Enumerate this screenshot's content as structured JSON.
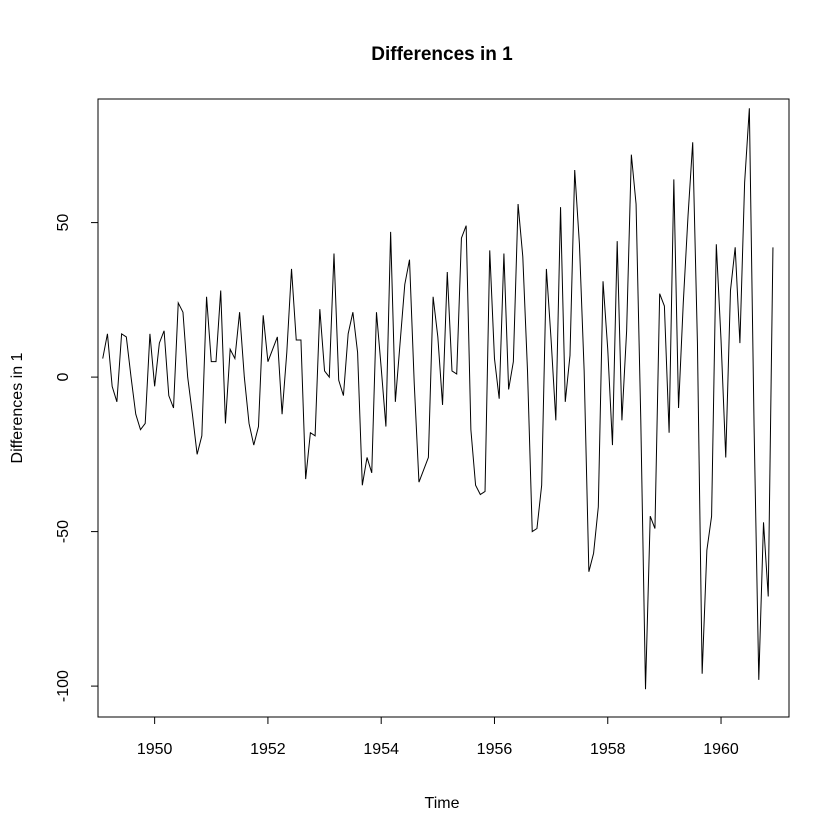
{
  "chart_data": {
    "type": "line",
    "title": "Differences in 1",
    "xlabel": "Time",
    "ylabel": "Differences in 1",
    "xlim": [
      1949.0,
      1961.2
    ],
    "ylim": [
      -110,
      90
    ],
    "x_ticks": [
      1950,
      1952,
      1954,
      1956,
      1958,
      1960
    ],
    "y_ticks": [
      -100,
      -50,
      0,
      50
    ],
    "grid": false,
    "line_color": "#000000",
    "series": [
      {
        "start": 1949.0833,
        "step": 0.083333,
        "values": [
          6,
          14,
          -3,
          -8,
          14,
          13,
          0,
          -12,
          -17,
          -15,
          14,
          -3,
          11,
          15,
          -6,
          -10,
          24,
          21,
          0,
          -12,
          -25,
          -19,
          26,
          5,
          5,
          28,
          -15,
          9,
          6,
          21,
          0,
          -15,
          -22,
          -16,
          20,
          5,
          9,
          13,
          -12,
          8,
          35,
          12,
          12,
          -33,
          -18,
          -19,
          22,
          2,
          0,
          40,
          -1,
          -6,
          14,
          21,
          8,
          -35,
          -26,
          -31,
          21,
          3,
          -16,
          47,
          -8,
          11,
          30,
          38,
          -2,
          -34,
          -30,
          -26,
          26,
          13,
          -9,
          34,
          2,
          1,
          45,
          49,
          -17,
          -35,
          -38,
          -37,
          41,
          6,
          -7,
          40,
          -4,
          5,
          56,
          39,
          2,
          -50,
          -49,
          -35,
          35,
          12,
          -14,
          55,
          -8,
          7,
          67,
          43,
          2,
          -63,
          -57,
          -42,
          31,
          9,
          -22,
          44,
          -14,
          15,
          72,
          56,
          -14,
          -101,
          -45,
          -49,
          27,
          23,
          -18,
          64,
          -10,
          24,
          52,
          76,
          11,
          -96,
          -56,
          -45,
          43,
          12,
          -26,
          28,
          42,
          11,
          63,
          87,
          -16,
          -98,
          -47,
          -71,
          42
        ]
      }
    ]
  }
}
